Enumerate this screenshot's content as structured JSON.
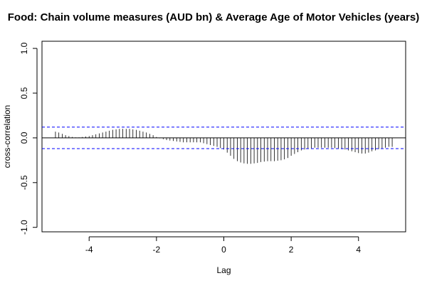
{
  "chart_data": {
    "type": "bar",
    "title": "Food: Chain volume measures (AUD bn) & Average Age of Motor Vehicles (years)",
    "xlabel": "Lag",
    "ylabel": "cross-correlation",
    "xlim": [
      -5.4,
      5.4
    ],
    "ylim": [
      -1.05,
      1.08
    ],
    "x_ticks": [
      -4,
      -2,
      0,
      2,
      4
    ],
    "y_ticks": [
      -1.0,
      -0.5,
      0.0,
      0.5,
      1.0
    ],
    "x_tick_labels": [
      "-4",
      "-2",
      "0",
      "2",
      "4"
    ],
    "y_tick_labels": [
      "-1.0",
      "-0.5",
      "0.0",
      "0.5",
      "1.0"
    ],
    "confidence_limit": 0.12,
    "x": [
      -5,
      -4.9,
      -4.8,
      -4.7,
      -4.6,
      -4.5,
      -4.4,
      -4.3,
      -4.2,
      -4.1,
      -4,
      -3.9,
      -3.8,
      -3.7,
      -3.6,
      -3.5,
      -3.4,
      -3.3,
      -3.2,
      -3.1,
      -3,
      -2.9,
      -2.8,
      -2.7,
      -2.6,
      -2.5,
      -2.4,
      -2.3,
      -2.2,
      -2.1,
      -2,
      -1.9,
      -1.8,
      -1.7,
      -1.6,
      -1.5,
      -1.4,
      -1.3,
      -1.2,
      -1.1,
      -1,
      -0.9,
      -0.8,
      -0.7,
      -0.6,
      -0.5,
      -0.4,
      -0.3,
      -0.2,
      -0.1,
      0,
      0.1,
      0.2,
      0.3,
      0.4,
      0.5,
      0.6,
      0.7,
      0.8,
      0.9,
      1,
      1.1,
      1.2,
      1.3,
      1.4,
      1.5,
      1.6,
      1.7,
      1.8,
      1.9,
      2,
      2.1,
      2.2,
      2.3,
      2.4,
      2.5,
      2.6,
      2.7,
      2.8,
      2.9,
      3,
      3.1,
      3.2,
      3.3,
      3.4,
      3.5,
      3.6,
      3.7,
      3.8,
      3.9,
      4,
      4.1,
      4.2,
      4.3,
      4.4,
      4.5,
      4.6,
      4.7,
      4.8,
      4.9,
      5
    ],
    "values": [
      0.07,
      0.06,
      0.045,
      0.03,
      0.02,
      0.01,
      0.005,
      0.005,
      0.01,
      0.015,
      0.02,
      0.03,
      0.04,
      0.05,
      0.06,
      0.07,
      0.08,
      0.09,
      0.095,
      0.1,
      0.1,
      0.1,
      0.1,
      0.095,
      0.09,
      0.08,
      0.07,
      0.06,
      0.045,
      0.03,
      0.01,
      -0.005,
      -0.015,
      -0.025,
      -0.03,
      -0.035,
      -0.04,
      -0.045,
      -0.05,
      -0.05,
      -0.05,
      -0.05,
      -0.05,
      -0.05,
      -0.06,
      -0.07,
      -0.08,
      -0.09,
      -0.1,
      -0.115,
      -0.13,
      -0.165,
      -0.2,
      -0.235,
      -0.26,
      -0.275,
      -0.285,
      -0.29,
      -0.29,
      -0.285,
      -0.28,
      -0.27,
      -0.265,
      -0.26,
      -0.26,
      -0.26,
      -0.255,
      -0.25,
      -0.24,
      -0.225,
      -0.2,
      -0.18,
      -0.16,
      -0.14,
      -0.13,
      -0.12,
      -0.115,
      -0.11,
      -0.11,
      -0.11,
      -0.11,
      -0.11,
      -0.11,
      -0.115,
      -0.12,
      -0.125,
      -0.13,
      -0.14,
      -0.15,
      -0.16,
      -0.17,
      -0.175,
      -0.175,
      -0.165,
      -0.15,
      -0.14,
      -0.125,
      -0.115,
      -0.11,
      -0.1,
      -0.1
    ],
    "grid": false
  },
  "colors": {
    "bars": "#000000",
    "confidence_lines": "#0000ff",
    "zero_line": "#000000"
  }
}
